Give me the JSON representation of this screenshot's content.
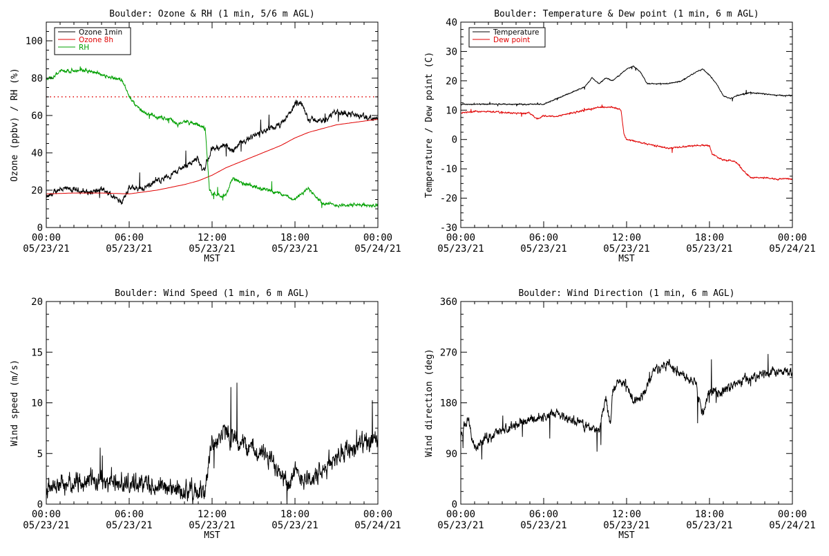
{
  "chart_data": [
    {
      "type": "line",
      "title": "Boulder: Ozone & RH (1 min, 5/6 m AGL)",
      "xlabel": "MST",
      "ylabel": "Ozone (ppbv) / RH (%)",
      "xlim": [
        0,
        24
      ],
      "ylim": [
        0,
        110
      ],
      "yticks": [
        0,
        20,
        40,
        60,
        80,
        100
      ],
      "legend_position": "top-left",
      "reference_line": {
        "y": 70,
        "style": "dotted",
        "color": "#e00000"
      },
      "series": [
        {
          "name": "Ozone 1min",
          "color": "#000000",
          "noise": 2.5,
          "step": 0.02,
          "x": [
            0,
            0.3,
            1,
            2,
            3,
            4,
            5,
            5.5,
            5.8,
            6,
            7,
            8,
            9,
            10,
            10.5,
            11,
            11.3,
            11.8,
            12,
            12.5,
            13,
            13.5,
            14,
            15,
            16,
            17,
            17.5,
            18,
            18.5,
            19,
            20,
            21,
            22,
            23,
            24
          ],
          "y": [
            16,
            17,
            21,
            20,
            19,
            20,
            16,
            14,
            19,
            21,
            21,
            25,
            28,
            33,
            35,
            37,
            30,
            38,
            42,
            43,
            44,
            41,
            45,
            49,
            52,
            55,
            60,
            66,
            66,
            58,
            57,
            62,
            61,
            59,
            58
          ]
        },
        {
          "name": "Ozone 8h",
          "color": "#e00000",
          "noise": 0,
          "x": [
            0,
            2,
            4,
            6,
            8,
            10,
            11,
            12,
            13,
            14,
            15,
            16,
            17,
            18,
            19,
            20,
            21,
            22,
            23,
            24
          ],
          "y": [
            18,
            18.5,
            18.5,
            18,
            20,
            23,
            25,
            28,
            32,
            35,
            38,
            41,
            44,
            48,
            51,
            53,
            55,
            56,
            57,
            58
          ]
        },
        {
          "name": "RH",
          "color": "#00a000",
          "noise": 1.5,
          "step": 0.02,
          "x": [
            0,
            0.5,
            1,
            2,
            3,
            4,
            5,
            5.5,
            6,
            6.5,
            7,
            8,
            9,
            9.5,
            10,
            11,
            11.5,
            11.8,
            12,
            13,
            13.5,
            14,
            15,
            16,
            17,
            18,
            19,
            20,
            21,
            22,
            23,
            24
          ],
          "y": [
            79,
            81,
            84,
            84,
            84,
            82,
            80,
            79,
            70,
            65,
            62,
            59,
            58,
            55,
            57,
            55,
            53,
            21,
            18,
            17,
            27,
            24,
            22,
            20,
            18,
            15,
            21,
            13,
            12,
            12,
            12,
            12
          ]
        }
      ]
    },
    {
      "type": "line",
      "title": "Boulder: Temperature & Dew point (1 min, 6 m AGL)",
      "xlabel": "MST",
      "ylabel": "Temperature / Dew point (C)",
      "xlim": [
        0,
        24
      ],
      "ylim": [
        -30,
        40
      ],
      "yticks": [
        -30,
        -20,
        -10,
        0,
        10,
        20,
        30,
        40
      ],
      "legend_position": "top-left",
      "series": [
        {
          "name": "Temperature",
          "color": "#000000",
          "noise": 0.3,
          "step": 0.02,
          "x": [
            0,
            2,
            4,
            5,
            6,
            7,
            8,
            9,
            9.5,
            10,
            10.5,
            11,
            11.5,
            12,
            12.5,
            13,
            13.5,
            14,
            15,
            16,
            17,
            17.5,
            18,
            18.5,
            19,
            19.5,
            20,
            21,
            22,
            23,
            24
          ],
          "y": [
            12,
            12,
            12,
            12,
            12,
            14,
            16,
            18,
            21,
            19,
            21,
            20,
            22,
            24,
            25,
            23,
            19,
            19,
            19,
            20,
            23,
            24,
            22,
            19,
            15,
            14,
            15,
            16,
            15.5,
            15,
            15
          ]
        },
        {
          "name": "Dew point",
          "color": "#e00000",
          "noise": 0.4,
          "step": 0.02,
          "x": [
            0,
            1,
            2,
            4,
            5,
            5.5,
            6,
            7,
            8,
            9,
            10,
            11,
            11.6,
            11.8,
            12,
            13,
            14,
            15,
            16,
            17,
            18,
            18.2,
            19,
            19.5,
            20,
            20.5,
            21,
            22,
            23,
            24
          ],
          "y": [
            9,
            9.5,
            9.5,
            9,
            9,
            7,
            8,
            8,
            9,
            10,
            11,
            11,
            10,
            2,
            0,
            -1,
            -2,
            -3,
            -2.5,
            -2,
            -2,
            -5,
            -7,
            -7,
            -8,
            -11,
            -13,
            -13,
            -13.5,
            -13.5
          ]
        }
      ]
    },
    {
      "type": "line",
      "title": "Boulder: Wind Speed (1 min, 6 m AGL)",
      "xlabel": "MST",
      "ylabel": "Wind speed (m/s)",
      "xlim": [
        0,
        24
      ],
      "ylim": [
        0,
        20
      ],
      "yticks": [
        0,
        5,
        10,
        15,
        20
      ],
      "series": [
        {
          "name": "",
          "color": "#000000",
          "noise": 1.6,
          "step": 0.02,
          "x": [
            0,
            1,
            2,
            3,
            4,
            5,
            6,
            7,
            8,
            9,
            10,
            11,
            11.5,
            11.8,
            12,
            12.5,
            13,
            14,
            15,
            16,
            17,
            17.5,
            18,
            19,
            20,
            21,
            22,
            23,
            24
          ],
          "y": [
            1.5,
            2,
            2,
            2.5,
            2.2,
            2.2,
            2,
            2,
            1.8,
            1.5,
            1.5,
            1.2,
            1,
            5,
            6,
            6.5,
            7,
            6,
            5.5,
            4.5,
            3.5,
            2,
            3,
            2.5,
            3,
            5,
            5.5,
            6,
            6
          ]
        }
      ]
    },
    {
      "type": "line",
      "title": "Boulder: Wind Direction (1 min, 6 m AGL)",
      "xlabel": "MST",
      "ylabel": "Wind direction (deg)",
      "xlim": [
        0,
        24
      ],
      "ylim": [
        0,
        360
      ],
      "yticks": [
        0,
        90,
        180,
        270,
        360
      ],
      "series": [
        {
          "name": "",
          "color": "#000000",
          "noise": 14,
          "step": 0.02,
          "x": [
            0,
            0.5,
            1,
            2,
            3,
            4,
            5,
            6,
            7,
            8,
            9,
            10,
            10.5,
            10.8,
            11,
            11.5,
            12,
            12.5,
            13,
            13.5,
            14,
            15,
            16,
            17,
            17.5,
            18,
            19,
            20,
            21,
            22,
            23,
            24
          ],
          "y": [
            120,
            150,
            100,
            120,
            130,
            140,
            150,
            155,
            160,
            150,
            140,
            130,
            190,
            140,
            200,
            220,
            210,
            180,
            190,
            210,
            240,
            250,
            230,
            220,
            160,
            200,
            200,
            215,
            225,
            230,
            235,
            235
          ]
        }
      ]
    }
  ],
  "x_ticks": [
    {
      "time": "00:00",
      "date": "05/23/21"
    },
    {
      "time": "06:00",
      "date": "05/23/21"
    },
    {
      "time": "12:00",
      "date": "05/23/21"
    },
    {
      "time": "18:00",
      "date": "05/23/21"
    },
    {
      "time": "00:00",
      "date": "05/24/21"
    }
  ]
}
